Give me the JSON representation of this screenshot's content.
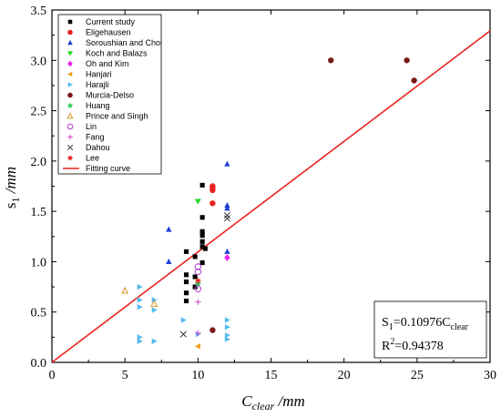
{
  "chart_data": {
    "type": "scatter",
    "title": "",
    "xlabel": {
      "main": "C",
      "sub": "clear",
      "unit": " /mm"
    },
    "ylabel": {
      "main": "s",
      "sub": "1",
      "unit": " /mm"
    },
    "xlim": [
      0,
      30
    ],
    "ylim": [
      0,
      3.5
    ],
    "xticks": [
      "0",
      "5",
      "10",
      "15",
      "20",
      "25",
      "30"
    ],
    "yticks": [
      "0.0",
      "0.5",
      "1.0",
      "1.5",
      "2.0",
      "2.5",
      "3.0",
      "3.5"
    ],
    "grid": false,
    "legend_position": "top-left",
    "series": [
      {
        "name": "Current study",
        "marker": "square",
        "color": "#000000",
        "points": [
          [
            9.2,
            0.61
          ],
          [
            9.2,
            0.69
          ],
          [
            9.2,
            0.8
          ],
          [
            9.2,
            0.87
          ],
          [
            9.2,
            1.1
          ],
          [
            9.8,
            0.75
          ],
          [
            9.8,
            0.85
          ],
          [
            9.8,
            1.05
          ],
          [
            10.3,
            0.99
          ],
          [
            10.3,
            1.15
          ],
          [
            10.3,
            1.2
          ],
          [
            10.3,
            1.26
          ],
          [
            10.3,
            1.3
          ],
          [
            10.3,
            1.44
          ],
          [
            10.3,
            1.76
          ],
          [
            10.5,
            1.13
          ]
        ]
      },
      {
        "name": "Eligehausen",
        "marker": "circle",
        "color": "#e8231f",
        "points": [
          [
            11.0,
            1.58
          ],
          [
            11.0,
            1.71
          ],
          [
            11.0,
            1.73
          ],
          [
            11.0,
            1.75
          ]
        ]
      },
      {
        "name": "Soroushian and Choi",
        "marker": "triangle-up",
        "color": "#1f3fd6",
        "points": [
          [
            8.0,
            1.32
          ],
          [
            8.0,
            1.0
          ],
          [
            12.0,
            1.97
          ],
          [
            12.0,
            1.56
          ],
          [
            12.0,
            1.1
          ],
          [
            12.0,
            1.53
          ]
        ]
      },
      {
        "name": "Koch and Balazs",
        "marker": "triangle-down",
        "color": "#22dd22",
        "points": [
          [
            10.0,
            1.6
          ]
        ]
      },
      {
        "name": "Oh and Kim",
        "marker": "diamond",
        "color": "#ee22ee",
        "points": [
          [
            12.0,
            1.04
          ]
        ]
      },
      {
        "name": "Hanjari",
        "marker": "triangle-left",
        "color": "#f0a020",
        "points": [
          [
            10.0,
            0.16
          ]
        ]
      },
      {
        "name": "Harajli",
        "marker": "triangle-right",
        "color": "#55bbee",
        "points": [
          [
            6.0,
            0.75
          ],
          [
            6.0,
            0.62
          ],
          [
            6.0,
            0.55
          ],
          [
            7.0,
            0.62
          ],
          [
            7.0,
            0.52
          ],
          [
            6.0,
            0.25
          ],
          [
            6.0,
            0.21
          ],
          [
            7.0,
            0.21
          ],
          [
            9.0,
            0.42
          ],
          [
            10.0,
            0.28
          ],
          [
            12.0,
            0.42
          ],
          [
            12.0,
            0.35
          ],
          [
            12.0,
            0.27
          ],
          [
            12.0,
            0.23
          ]
        ]
      },
      {
        "name": "Murcia-Delso",
        "marker": "circle",
        "color": "#7a1a1a",
        "points": [
          [
            19.1,
            3.0
          ],
          [
            24.3,
            3.0
          ],
          [
            24.8,
            2.8
          ],
          [
            11.0,
            0.32
          ]
        ]
      },
      {
        "name": "Huang",
        "marker": "star",
        "color": "#22cc55",
        "points": [
          [
            10.0,
            0.78
          ]
        ]
      },
      {
        "name": "Prince and Singh",
        "marker": "triangle-up-open",
        "color": "#d89a2a",
        "points": [
          [
            5.0,
            0.71
          ],
          [
            7.0,
            0.58
          ]
        ]
      },
      {
        "name": "Lin",
        "marker": "circle-open",
        "color": "#b040d0",
        "points": [
          [
            10.0,
            0.9
          ],
          [
            10.0,
            0.95
          ],
          [
            10.0,
            0.73
          ]
        ]
      },
      {
        "name": "Fang",
        "marker": "plus",
        "color": "#dd44cc",
        "points": [
          [
            10.0,
            0.6
          ],
          [
            10.0,
            0.29
          ]
        ]
      },
      {
        "name": "Dahou",
        "marker": "x",
        "color": "#333333",
        "points": [
          [
            12.0,
            1.46
          ],
          [
            12.0,
            1.43
          ],
          [
            9.0,
            0.28
          ]
        ]
      },
      {
        "name": "Lee",
        "marker": "asterisk",
        "color": "#e8231f",
        "points": [
          [
            10.0,
            0.81
          ]
        ]
      }
    ],
    "fit": {
      "name": "Fitting curve",
      "color": "#e8231f",
      "slope": 0.10976,
      "x": [
        0,
        30
      ]
    },
    "annotation": {
      "line1_main": "S",
      "line1_sub": "1",
      "line1_rest": "=0.10976C",
      "line1_sub2": "clear",
      "line2_main": "R",
      "line2_sup": "2",
      "line2_rest": "=0.94378"
    }
  }
}
